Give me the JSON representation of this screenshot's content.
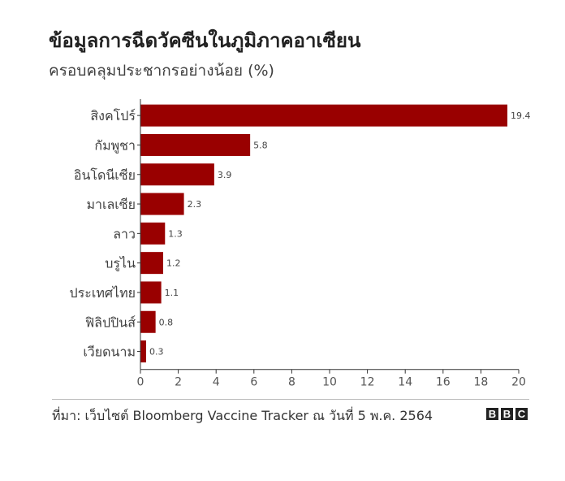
{
  "header": {
    "title": "ข้อมูลการฉีดวัคซีนในภูมิภาคอาเซียน",
    "subtitle": "ครอบคลุมประชากรอย่างน้อย (%)"
  },
  "footer": {
    "source": "ที่มา: เว็บไซต์ Bloomberg Vaccine Tracker ณ วันที่ 5 พ.ค. 2564",
    "logo_letters": [
      "B",
      "B",
      "C"
    ]
  },
  "colors": {
    "bar": "#990000",
    "axis": "#333333",
    "grid": "#cccccc"
  },
  "chart_data": {
    "type": "bar",
    "orientation": "horizontal",
    "title": "ข้อมูลการฉีดวัคซีนในภูมิภาคอาเซียน",
    "subtitle": "ครอบคลุมประชากรอย่างน้อย (%)",
    "categories": [
      "สิงคโปร์",
      "กัมพูชา",
      "อินโดนีเซีย",
      "มาเลเซีย",
      "ลาว",
      "บรูไน",
      "ประเทศไทย",
      "ฟิลิปปินส์",
      "เวียดนาม"
    ],
    "values": [
      19.4,
      5.8,
      3.9,
      2.3,
      1.3,
      1.2,
      1.1,
      0.8,
      0.3
    ],
    "value_labels": [
      "19.4",
      "5.8",
      "3.9",
      "2.3",
      "1.3",
      "1.2",
      "1.1",
      "0.8",
      "0.3"
    ],
    "xlim": [
      0,
      20
    ],
    "xticks": [
      0,
      2,
      4,
      6,
      8,
      10,
      12,
      14,
      16,
      18,
      20
    ],
    "xlabel": "",
    "ylabel": "",
    "grid": false
  }
}
